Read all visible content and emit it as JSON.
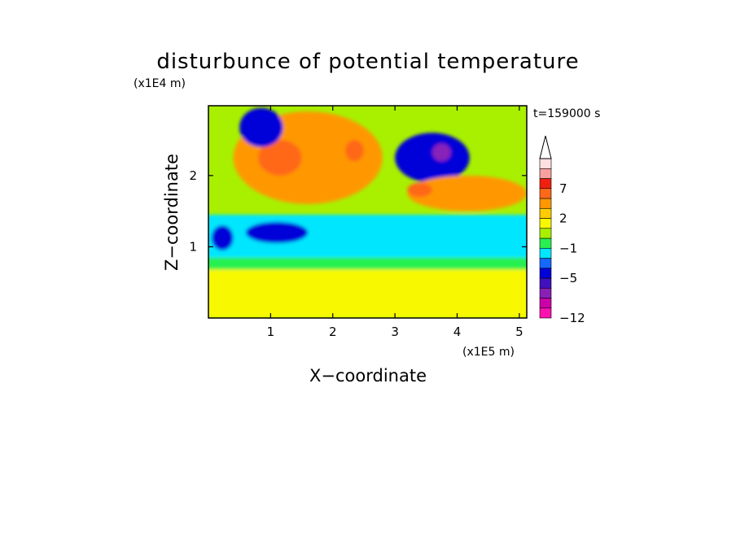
{
  "chart_data": {
    "type": "heatmap",
    "title": "disturbunce of potential temperature",
    "xlabel": "X−coordinate",
    "ylabel": "Z−coordinate",
    "x_unit_label": "(x1E5 m)",
    "y_unit_label": "(x1E4 m)",
    "time_label": "t=159000 s",
    "xlim": [
      0,
      5.12
    ],
    "ylim": [
      0,
      2.98
    ],
    "x_ticks": [
      1,
      2,
      3,
      4,
      5
    ],
    "x_tick_labels": [
      "1",
      "2",
      "3",
      "4",
      "5"
    ],
    "y_ticks": [
      1,
      2
    ],
    "y_tick_labels": [
      "1",
      "2"
    ],
    "grid": false,
    "colorbar": {
      "levels": [
        -12,
        -11,
        -9,
        -7,
        -5,
        -3,
        -2,
        -1,
        0,
        1,
        2,
        3,
        5,
        7,
        9,
        11
      ],
      "labels": [
        {
          "value": -12,
          "text": "−12"
        },
        {
          "value": -5,
          "text": "−5"
        },
        {
          "value": -1,
          "text": "−1"
        },
        {
          "value": 2,
          "text": "2"
        },
        {
          "value": 7,
          "text": "7"
        }
      ],
      "colors": [
        "#ff10b0",
        "#cc00a8",
        "#8820b8",
        "#4010c0",
        "#0000d8",
        "#1468ff",
        "#00e6ff",
        "#28f050",
        "#a8f000",
        "#f8f800",
        "#ffcc00",
        "#ff9800",
        "#ff6818",
        "#f02010",
        "#f8a0a0",
        "#fce0e0"
      ],
      "extend": "max"
    },
    "background_value": 0.5,
    "features": [
      {
        "region": "lower layer",
        "x": [
          0,
          5.12
        ],
        "z": [
          0,
          0.85
        ],
        "value": 1.5
      },
      {
        "region": "lower green band",
        "x": [
          0,
          5.12
        ],
        "z": [
          0.68,
          0.85
        ],
        "value": -0.5
      },
      {
        "region": "cyan band",
        "x": [
          0,
          5.12
        ],
        "z": [
          0.85,
          1.45
        ],
        "value": -1.5
      },
      {
        "region": "blue patch west",
        "x": [
          0.05,
          0.4
        ],
        "z": [
          0.95,
          1.3
        ],
        "value": -4
      },
      {
        "region": "blue patch center",
        "x": [
          0.6,
          1.6
        ],
        "z": [
          1.05,
          1.35
        ],
        "value": -4
      },
      {
        "region": "upper warm fan",
        "x": [
          0.4,
          2.8
        ],
        "z": [
          1.6,
          2.9
        ],
        "value": 3
      },
      {
        "region": "orange core",
        "x": [
          0.8,
          1.5
        ],
        "z": [
          2.0,
          2.5
        ],
        "value": 5
      },
      {
        "region": "orange blob",
        "x": [
          2.2,
          2.5
        ],
        "z": [
          2.2,
          2.5
        ],
        "value": 6
      },
      {
        "region": "cold anomaly",
        "x": [
          3.0,
          4.2
        ],
        "z": [
          1.9,
          2.6
        ],
        "value": -5
      },
      {
        "region": "cold anomaly core",
        "x": [
          3.6,
          3.9
        ],
        "z": [
          2.2,
          2.45
        ],
        "value": -9
      },
      {
        "region": "blue streaks top",
        "x": [
          0.5,
          1.2
        ],
        "z": [
          2.4,
          2.95
        ],
        "value": -4
      },
      {
        "region": "warm band east",
        "x": [
          3.2,
          5.12
        ],
        "z": [
          1.5,
          2.0
        ],
        "value": 3
      },
      {
        "region": "warm blobs",
        "x": [
          3.2,
          3.6
        ],
        "z": [
          1.7,
          1.9
        ],
        "value": 6
      }
    ]
  }
}
